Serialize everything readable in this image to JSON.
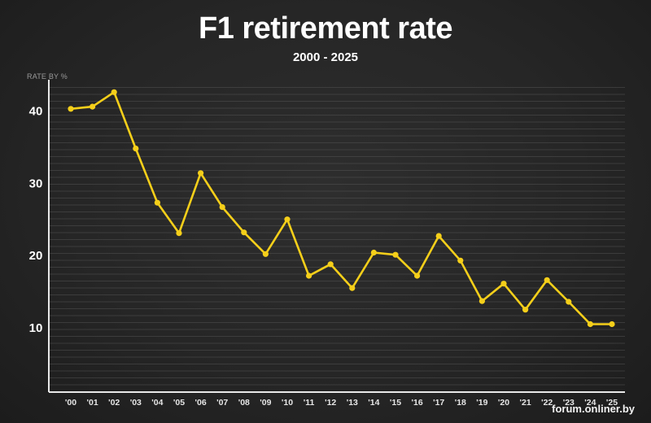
{
  "chart_data": {
    "type": "line",
    "title": "F1 retirement rate",
    "subtitle": "2000 - 2025",
    "ylabel": "RATE BY %",
    "xlabel": "",
    "categories": [
      "'00",
      "'01",
      "'02",
      "'03",
      "'04",
      "'05",
      "'06",
      "'07",
      "'08",
      "'09",
      "'10",
      "'11",
      "'12",
      "'13",
      "'14",
      "'15",
      "'16",
      "'17",
      "'18",
      "'19",
      "'20",
      "'21",
      "'22",
      "'23",
      "'24",
      "'25"
    ],
    "values": [
      40.2,
      40.5,
      42.5,
      34.7,
      27.2,
      23.0,
      31.3,
      26.6,
      23.1,
      20.1,
      24.9,
      17.1,
      18.7,
      15.4,
      20.3,
      20.0,
      17.1,
      22.6,
      19.2,
      13.6,
      16.0,
      12.4,
      16.5,
      13.5,
      10.4,
      10.4
    ],
    "yticks": [
      10,
      20,
      30,
      40
    ],
    "ylim": [
      1,
      44
    ],
    "grid": true,
    "line_color": "#f5cf1a",
    "axis_color": "#e8e8e8",
    "grid_color": "#5a5a5a"
  },
  "watermark": "forum.onliner.by"
}
